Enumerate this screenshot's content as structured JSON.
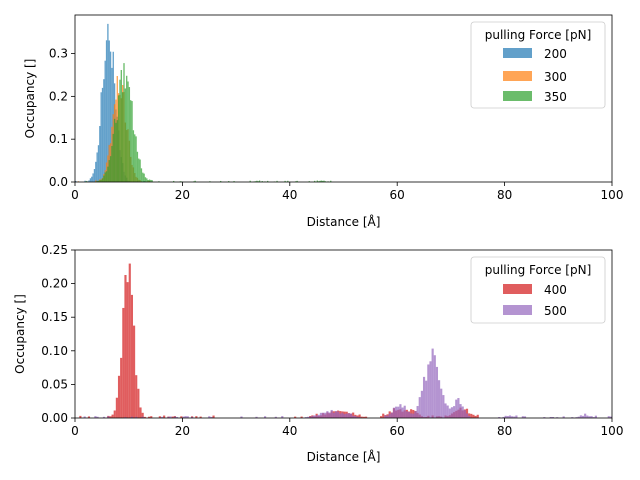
{
  "chart_data": [
    {
      "type": "histogram",
      "xlabel": "Distance [Å]",
      "ylabel": "Occupancy []",
      "xlim": [
        0,
        100
      ],
      "ylim": [
        0,
        0.39
      ],
      "xticks": [
        "0",
        "20",
        "40",
        "60",
        "80",
        "100"
      ],
      "yticks": [
        "0.0",
        "0.1",
        "0.2",
        "0.3"
      ],
      "grid": false,
      "legend": {
        "title": "pulling Force [pN]",
        "placement": "top-right"
      },
      "bin_width": 0.25,
      "series": [
        {
          "name": "200",
          "color": "#1f77b4",
          "opacity": 0.7,
          "peaks": [
            {
              "center": 6.3,
              "width": 1.2,
              "height": 0.36
            }
          ],
          "noise": 0.003,
          "range": [
            0,
            13
          ]
        },
        {
          "name": "300",
          "color": "#ff7f0e",
          "opacity": 0.7,
          "peaks": [
            {
              "center": 8.3,
              "width": 1.3,
              "height": 0.23
            }
          ],
          "noise": 0.003,
          "range": [
            0,
            14
          ]
        },
        {
          "name": "350",
          "color": "#2ca02c",
          "opacity": 0.7,
          "peaks": [
            {
              "center": 9.2,
              "width": 1.6,
              "height": 0.24
            },
            {
              "center": 34,
              "width": 0.6,
              "height": 0.002
            },
            {
              "center": 46,
              "width": 0.6,
              "height": 0.003
            }
          ],
          "noise": 0.003,
          "range": [
            0,
            48
          ]
        }
      ]
    },
    {
      "type": "histogram",
      "xlabel": "Distance [Å]",
      "ylabel": "Occupancy []",
      "xlim": [
        0,
        100
      ],
      "ylim": [
        0,
        0.25
      ],
      "xticks": [
        "0",
        "20",
        "40",
        "60",
        "80",
        "100"
      ],
      "yticks": [
        "0.00",
        "0.05",
        "0.10",
        "0.15",
        "0.20",
        "0.25"
      ],
      "grid": false,
      "legend": {
        "title": "pulling Force [pN]",
        "placement": "top-right"
      },
      "bin_width": 0.4,
      "series": [
        {
          "name": "400",
          "color": "#d62728",
          "opacity": 0.75,
          "peaks": [
            {
              "center": 9.9,
              "width": 1.0,
              "height": 0.235
            },
            {
              "center": 49,
              "width": 2.5,
              "height": 0.01
            },
            {
              "center": 60,
              "width": 1.5,
              "height": 0.012
            },
            {
              "center": 63,
              "width": 1.0,
              "height": 0.01
            },
            {
              "center": 72,
              "width": 1.5,
              "height": 0.012
            }
          ],
          "noise": 0.004,
          "range": [
            0,
            76
          ]
        },
        {
          "name": "500",
          "color": "#9467bd",
          "opacity": 0.7,
          "peaks": [
            {
              "center": 66.6,
              "width": 1.5,
              "height": 0.088
            },
            {
              "center": 60.5,
              "width": 1.2,
              "height": 0.02
            },
            {
              "center": 71.5,
              "width": 0.9,
              "height": 0.026
            },
            {
              "center": 48,
              "width": 2.5,
              "height": 0.009
            },
            {
              "center": 81,
              "width": 1.0,
              "height": 0.003
            },
            {
              "center": 95,
              "width": 1.0,
              "height": 0.004
            }
          ],
          "noise": 0.003,
          "range": [
            0,
            100
          ]
        }
      ]
    }
  ]
}
